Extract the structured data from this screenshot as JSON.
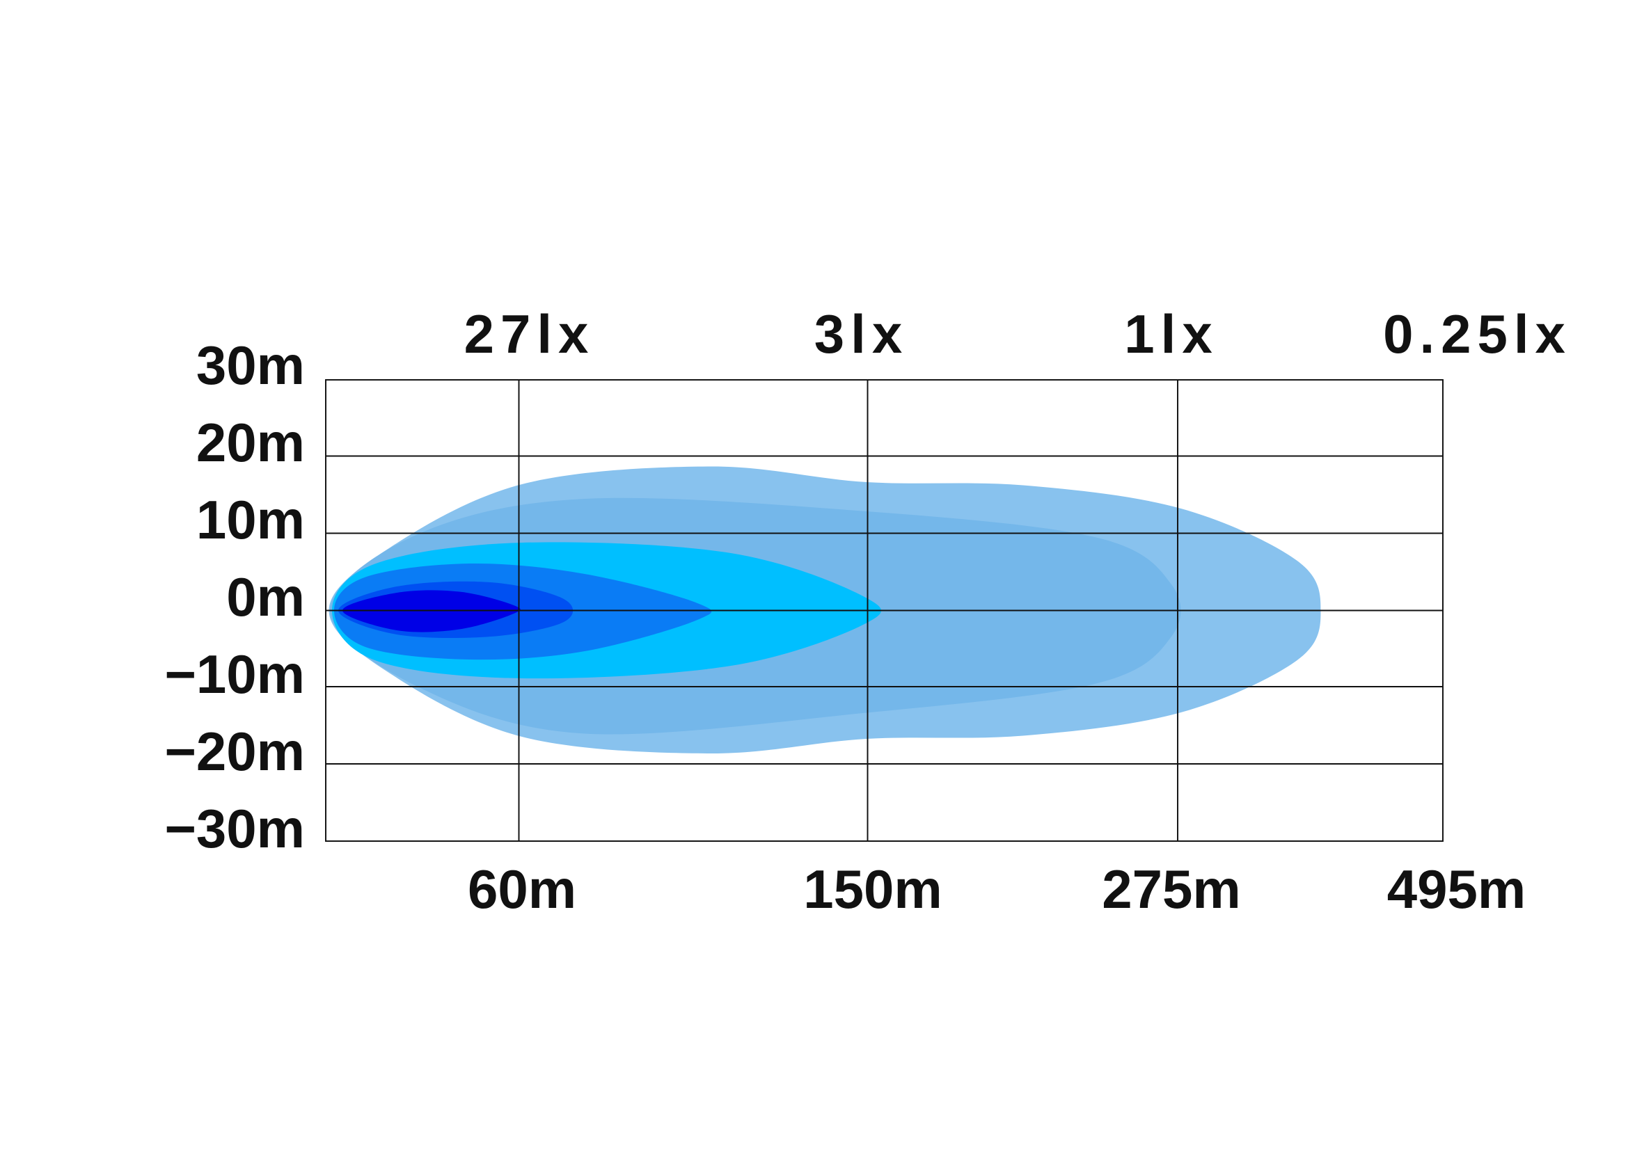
{
  "y_axis": {
    "labels": [
      "30m",
      "20m",
      "10m",
      "0m",
      "−10m",
      "−20m",
      "−30m"
    ]
  },
  "x_axis": {
    "labels": [
      "60m",
      "150m",
      "275m",
      "495m"
    ]
  },
  "illuminance": {
    "labels": [
      "27lx",
      "3lx",
      "1lx",
      "0.25lx"
    ]
  }
}
